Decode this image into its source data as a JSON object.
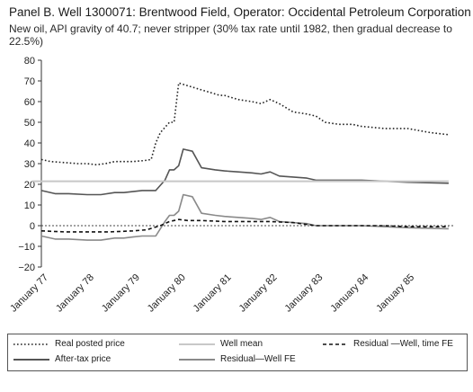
{
  "title": "Panel B. Well 1300071: Brentwood Field, Operator: Occidental Petroleum Corporation",
  "subtitle": "New oil, API gravity of 40.7; never stripper (30% tax rate until 1982, then gradual decrease to 22.5%)",
  "chart_data": {
    "type": "line",
    "ylim": [
      -20,
      80
    ],
    "yticks": [
      "−20",
      "−10",
      "0",
      "10",
      "20",
      "30",
      "40",
      "50",
      "60",
      "70",
      "80"
    ],
    "xlim": [
      1977.0,
      1986.0
    ],
    "xticks": [
      {
        "label": "January 77",
        "x": 1977.0
      },
      {
        "label": "January 78",
        "x": 1978.0
      },
      {
        "label": "January 79",
        "x": 1979.0
      },
      {
        "label": "January 80",
        "x": 1980.0
      },
      {
        "label": "January 81",
        "x": 1981.0
      },
      {
        "label": "January 82",
        "x": 1982.0
      },
      {
        "label": "January 83",
        "x": 1983.0
      },
      {
        "label": "January 84",
        "x": 1984.0
      },
      {
        "label": "January 85",
        "x": 1985.0
      }
    ],
    "grid": false,
    "series": [
      {
        "name": "Real posted price",
        "style": "dotted",
        "color": "#222222",
        "x": [
          1977.0,
          1977.2,
          1977.5,
          1977.8,
          1978.0,
          1978.2,
          1978.4,
          1978.6,
          1978.8,
          1979.0,
          1979.25,
          1979.4,
          1979.5,
          1979.6,
          1979.8,
          1979.9,
          1980.0,
          1980.3,
          1980.6,
          1980.9,
          1981.0,
          1981.3,
          1981.6,
          1981.8,
          1982.0,
          1982.2,
          1982.5,
          1982.8,
          1983.0,
          1983.2,
          1983.5,
          1983.8,
          1984.0,
          1984.5,
          1985.0,
          1985.5,
          1985.9
        ],
        "y": [
          32,
          31,
          30.5,
          30,
          30,
          29.5,
          30,
          31,
          31,
          31,
          31.5,
          32,
          40,
          45,
          50,
          50,
          69,
          67,
          65,
          63,
          63,
          61,
          60,
          59,
          61,
          59,
          55,
          54,
          53,
          50,
          49,
          49,
          48,
          47,
          47,
          45,
          44
        ]
      },
      {
        "name": "After-tax price",
        "style": "solid",
        "color": "#555555",
        "x": [
          1977.0,
          1977.3,
          1977.6,
          1978.0,
          1978.3,
          1978.6,
          1978.8,
          1979.0,
          1979.2,
          1979.3,
          1979.5,
          1979.7,
          1979.8,
          1979.9,
          1980.0,
          1980.1,
          1980.3,
          1980.5,
          1980.8,
          1981.0,
          1981.3,
          1981.6,
          1981.8,
          1982.0,
          1982.2,
          1982.5,
          1982.8,
          1983.0,
          1983.5,
          1984.0,
          1985.0,
          1985.9
        ],
        "y": [
          17,
          15.5,
          15.5,
          15,
          15,
          16,
          16,
          16.5,
          17,
          17,
          17,
          22,
          27,
          27,
          29,
          37,
          36,
          28,
          27,
          26.5,
          26,
          25.5,
          25,
          26,
          24,
          23.5,
          23,
          22,
          22,
          22,
          21,
          20.5
        ]
      },
      {
        "name": "Well mean",
        "style": "solid",
        "color": "#c8c8c8",
        "x": [
          1976.8,
          1985.9
        ],
        "y": [
          21.5,
          21.5
        ]
      },
      {
        "name": "Residual—Well FE",
        "style": "solid",
        "color": "#8a8a8a",
        "x": [
          1977.0,
          1977.3,
          1977.6,
          1978.0,
          1978.3,
          1978.6,
          1978.8,
          1979.0,
          1979.2,
          1979.3,
          1979.5,
          1979.7,
          1979.8,
          1979.9,
          1980.0,
          1980.1,
          1980.3,
          1980.5,
          1980.8,
          1981.0,
          1981.3,
          1981.6,
          1981.8,
          1982.0,
          1982.2,
          1982.5,
          1982.8,
          1983.0,
          1983.5,
          1984.0,
          1985.0,
          1985.9
        ],
        "y": [
          -5,
          -6.5,
          -6.5,
          -7,
          -7,
          -6,
          -6,
          -5.5,
          -5,
          -5,
          -5,
          2,
          5,
          5,
          7,
          15,
          14,
          6,
          5,
          4.5,
          4,
          3.5,
          3,
          4,
          2,
          1.5,
          1,
          0,
          0,
          0,
          -1,
          -1.5
        ]
      },
      {
        "name": "Residual —Well, time FE",
        "style": "dashed",
        "color": "#111111",
        "x": [
          1977.0,
          1977.5,
          1978.0,
          1978.5,
          1979.0,
          1979.3,
          1979.6,
          1979.8,
          1980.0,
          1980.2,
          1980.5,
          1981.0,
          1981.5,
          1982.0,
          1982.5,
          1983.0,
          1983.5,
          1984.0,
          1984.5,
          1985.0,
          1985.5,
          1985.9
        ],
        "y": [
          -2.5,
          -3,
          -3,
          -3,
          -2.5,
          -2,
          0,
          2,
          3,
          2.5,
          2.5,
          2,
          2,
          2,
          1.5,
          0,
          0,
          0,
          0,
          -0.5,
          -0.5,
          -0.5
        ]
      }
    ]
  },
  "legend": {
    "items": [
      {
        "label": "Real posted price",
        "style": "dotted",
        "color": "#222222"
      },
      {
        "label": "Well mean",
        "style": "solid",
        "color": "#c8c8c8"
      },
      {
        "label": "Residual —Well, time FE",
        "style": "dashed",
        "color": "#111111"
      },
      {
        "label": "After-tax price",
        "style": "solid",
        "color": "#555555"
      },
      {
        "label": "Residual—Well FE",
        "style": "solid",
        "color": "#8a8a8a"
      }
    ]
  }
}
